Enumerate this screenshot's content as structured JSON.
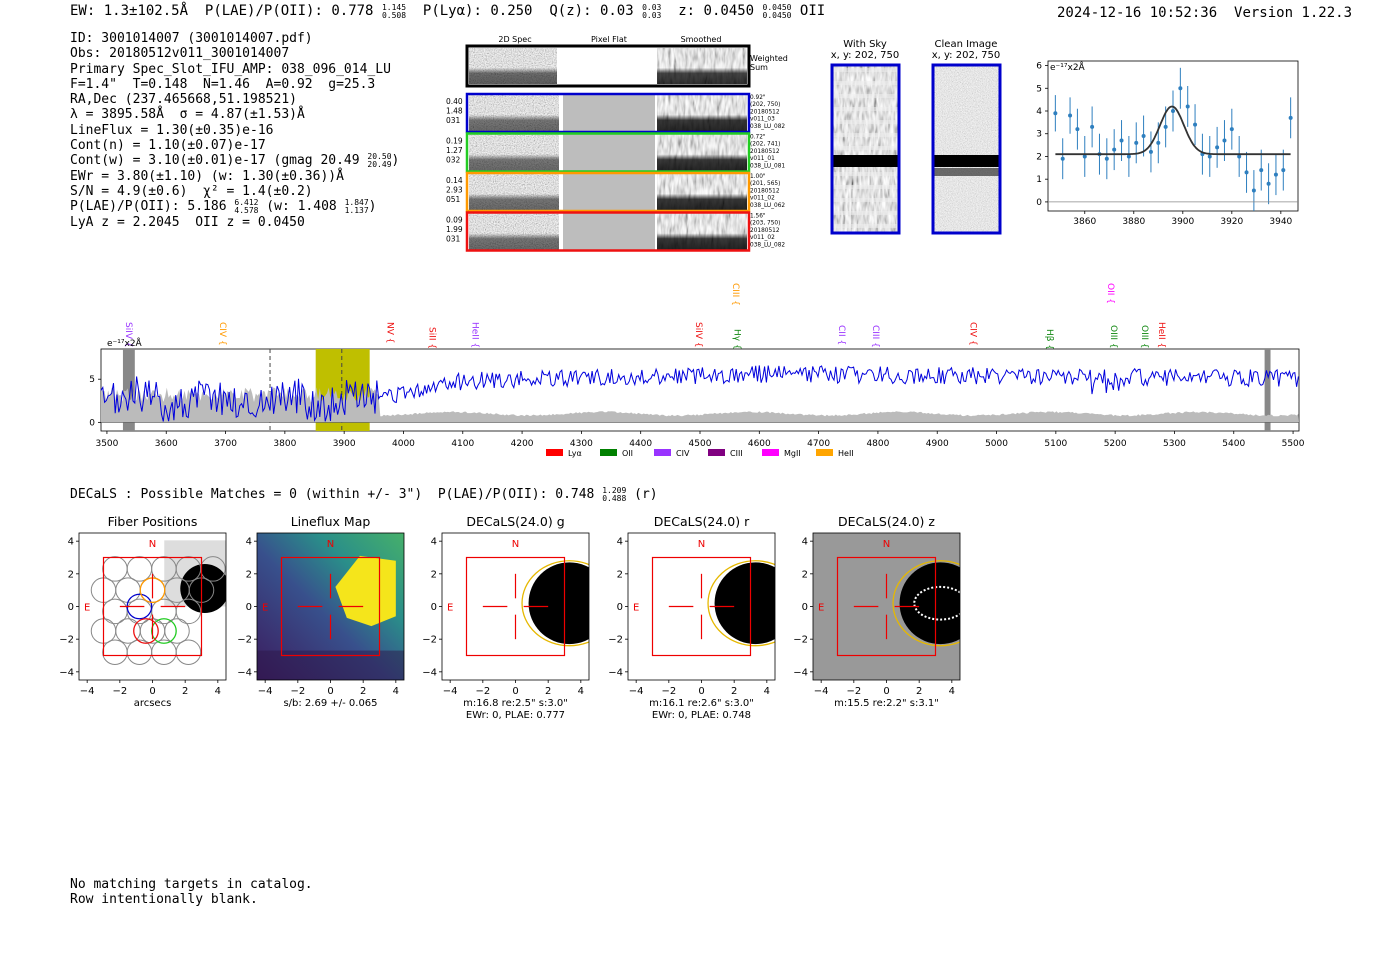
{
  "header": {
    "ew_label": "EW:",
    "ew_value": "1.3±102.5Å",
    "plae_label": "P(LAE)/P(OII):",
    "plae_value": "0.778",
    "plae_hi": "1.145",
    "plae_lo": "0.508",
    "plya_label": "P(Lyα):",
    "plya_value": "0.250",
    "qz_label": "Q(z):",
    "qz_value": "0.03",
    "qz_hi": "0.03",
    "qz_lo": "0.03",
    "z_label": "z:",
    "z_value": "0.0450",
    "z_hi": "0.0450",
    "z_lo": "0.0450",
    "z_line": "OII",
    "timestamp": "2024-12-16 10:52:36",
    "version": "Version 1.22.3"
  },
  "info": {
    "id": "ID: 3001014007 (3001014007.pdf)",
    "obs": "Obs: 20180512v011_3001014007",
    "primary": "Primary Spec_Slot_IFU_AMP: 038_096_014_LU",
    "fparams": "F=1.4\"  T=0.148  N=1.46  A=0.92  g=25.3",
    "radec": "RA,Dec (237.465668,51.198521)",
    "lambda": "λ = 3895.58Å  σ = 4.87(±1.53)Å",
    "lineflux": "LineFlux = 1.30(±0.35)e-16",
    "contn": "Cont(n) = 1.10(±0.07)e-17",
    "contw": "Cont(w) = 3.10(±0.01)e-17 (gmag 20.49",
    "gmag_hi": "20.50",
    "gmag_lo": "20.49",
    "ewr": "EWr = 3.80(±1.10) (w: 1.30(±0.36))Å",
    "sn": "S/N = 4.9(±0.6)  χ² = 1.4(±0.2)",
    "plae": "P(LAE)/P(OII): 5.186",
    "plae_hi": "6.412",
    "plae_lo": "4.578",
    "plae_w": "(w: 1.408",
    "plae_w_hi": "1.847",
    "plae_w_lo": "1.137",
    "lyaz": "LyA z = 2.2045  OII z = 0.0450"
  },
  "cutouts": {
    "col_headers": [
      "2D Spec",
      "Pixel Flat",
      "Smoothed"
    ],
    "weighted_label": [
      "Weighted",
      "Sum"
    ],
    "rows": [
      {
        "left": [
          "0.40",
          "1.48",
          "031"
        ],
        "right": [
          "0.92\"",
          "(202, 750)",
          "20180512",
          "v011_03",
          "038_LU_082"
        ],
        "color": "#0000cc"
      },
      {
        "left": [
          "0.19",
          "1.27",
          "032"
        ],
        "right": [
          "0.72\"",
          "(202, 741)",
          "20180512",
          "v011_01",
          "038_LU_081"
        ],
        "color": "#22cc22"
      },
      {
        "left": [
          "0.14",
          "2.93",
          "051"
        ],
        "right": [
          "1.00\"",
          "(201, 565)",
          "20180512",
          "v011_02",
          "038_LU_062"
        ],
        "color": "#ff9900"
      },
      {
        "left": [
          "0.09",
          "1.99",
          "031"
        ],
        "right": [
          "1.56\"",
          "(203, 750)",
          "20180512",
          "v011_02",
          "038_LU_082"
        ],
        "color": "#ee1111"
      }
    ]
  },
  "sky_panels": {
    "with_sky_title": "With Sky",
    "with_sky_coords": "x, y: 202, 750",
    "clean_title": "Clean Image",
    "clean_coords": "x, y: 202, 750"
  },
  "fit_plot": {
    "y_unit": "e⁻¹⁷x2Å",
    "yticks": [
      "0",
      "1",
      "2",
      "3",
      "4",
      "5",
      "6"
    ],
    "xticks": [
      "3860",
      "3880",
      "3900",
      "3920",
      "3940"
    ]
  },
  "full_spectrum": {
    "y_unit": "e⁻¹⁷x2Å",
    "yticks": [
      "0",
      "5"
    ],
    "xticks": [
      "3500",
      "3600",
      "3700",
      "3800",
      "3900",
      "4000",
      "4100",
      "4200",
      "4300",
      "4400",
      "4500",
      "4600",
      "4700",
      "4800",
      "4900",
      "5000",
      "5100",
      "5200",
      "5300",
      "5400",
      "5500"
    ],
    "line_marks": [
      {
        "label": "SiIV",
        "color": "#9933ff"
      },
      {
        "label": "CIV",
        "color": "#ff9900"
      },
      {
        "label": "NV",
        "color": "#ee1111"
      },
      {
        "label": "SiII",
        "color": "#ee1111"
      },
      {
        "label": "HeII",
        "color": "#9933ff"
      },
      {
        "label": "SiIV",
        "color": "#ee1111"
      },
      {
        "label": "CIII",
        "color": "#ff9900"
      },
      {
        "label": "Hγ",
        "color": "#118811"
      },
      {
        "label": "CII",
        "color": "#9933ff"
      },
      {
        "label": "CIII",
        "color": "#9933ff"
      },
      {
        "label": "CIV",
        "color": "#ee1111"
      },
      {
        "label": "Hβ",
        "color": "#118811"
      },
      {
        "label": "OIII",
        "color": "#118811"
      },
      {
        "label": "OII",
        "color": "#ff00ff"
      },
      {
        "label": "OIII",
        "color": "#118811"
      },
      {
        "label": "HeII",
        "color": "#ee1111"
      }
    ],
    "legend": [
      {
        "label": "Lyα",
        "color": "#ff0000"
      },
      {
        "label": "OII",
        "color": "#008000"
      },
      {
        "label": "CIV",
        "color": "#9933ff"
      },
      {
        "label": "CIII",
        "color": "#800080"
      },
      {
        "label": "MgII",
        "color": "#ff00ff"
      },
      {
        "label": "HeII",
        "color": "#ffa500"
      }
    ]
  },
  "decals": {
    "line": "DECaLS : Possible Matches = 0 (within +/- 3\")  P(LAE)/P(OII): 0.748",
    "hi": "1.209",
    "lo": "0.488",
    "band": "(r)"
  },
  "imaging": {
    "yticks": [
      "4",
      "2",
      "0",
      "−2",
      "−4"
    ],
    "xticks": [
      "−4",
      "−2",
      "0",
      "2",
      "4"
    ],
    "north": "N",
    "east": "E",
    "panels": [
      {
        "title": "Fiber Positions",
        "caption1": "arcsecs",
        "caption2": ""
      },
      {
        "title": "Lineflux Map",
        "caption1": "s/b: 2.69 +/- 0.065",
        "caption2": ""
      },
      {
        "title": "DECaLS(24.0) g",
        "caption1": "m:16.8  re:2.5\"  s:3.0\"",
        "caption2": "EWr: 0, PLAE: 0.777"
      },
      {
        "title": "DECaLS(24.0) r",
        "caption1": "m:16.1  re:2.6\"  s:3.0\"",
        "caption2": "EWr: 0, PLAE: 0.748"
      },
      {
        "title": "DECaLS(24.0) z",
        "caption1": "m:15.5  re:2.2\"  s:3.1\"",
        "caption2": ""
      }
    ]
  },
  "footer": {
    "line1": "No matching targets in catalog.",
    "line2": "Row intentionally blank."
  },
  "chart_data": [
    {
      "type": "scatter",
      "title": "",
      "xlabel": "",
      "ylabel": "e⁻¹⁷x2Å",
      "xlim": [
        3845,
        3947
      ],
      "ylim": [
        -0.4,
        6.2
      ],
      "x": [
        3848,
        3851,
        3854,
        3857,
        3860,
        3863,
        3866,
        3869,
        3872,
        3875,
        3878,
        3881,
        3884,
        3887,
        3890,
        3893,
        3896,
        3899,
        3902,
        3905,
        3908,
        3911,
        3914,
        3917,
        3920,
        3923,
        3926,
        3929,
        3932,
        3935,
        3938,
        3941,
        3944
      ],
      "y": [
        3.9,
        1.9,
        3.8,
        3.2,
        2.0,
        3.3,
        2.1,
        1.9,
        2.3,
        2.7,
        2.0,
        2.6,
        2.9,
        2.2,
        2.6,
        3.3,
        4.0,
        5.0,
        4.2,
        3.4,
        2.1,
        2.0,
        2.4,
        2.7,
        3.2,
        2.0,
        1.3,
        0.5,
        1.4,
        0.8,
        1.2,
        1.4,
        3.7
      ],
      "yerr": [
        0.8,
        0.9,
        0.8,
        0.9,
        0.9,
        0.9,
        0.9,
        0.9,
        0.9,
        0.9,
        0.9,
        0.9,
        0.9,
        0.9,
        0.9,
        0.9,
        0.9,
        0.9,
        0.9,
        0.9,
        0.9,
        0.9,
        0.9,
        0.9,
        0.9,
        0.9,
        0.9,
        0.9,
        0.9,
        0.9,
        0.9,
        0.9,
        0.9
      ],
      "model": {
        "baseline": 2.1,
        "amplitude": 2.1,
        "center": 3895.58,
        "sigma": 4.87
      }
    },
    {
      "type": "line",
      "title": "",
      "xlabel": "",
      "ylabel": "e⁻¹⁷x2Å",
      "xlim": [
        3490,
        5510
      ],
      "ylim": [
        -1,
        8.5
      ],
      "highlight_band": [
        3852,
        3943
      ],
      "dashed_lines": [
        3775,
        3896
      ],
      "gap_bands": [
        [
          3527,
          3547
        ],
        [
          5452,
          5462
        ]
      ]
    }
  ]
}
